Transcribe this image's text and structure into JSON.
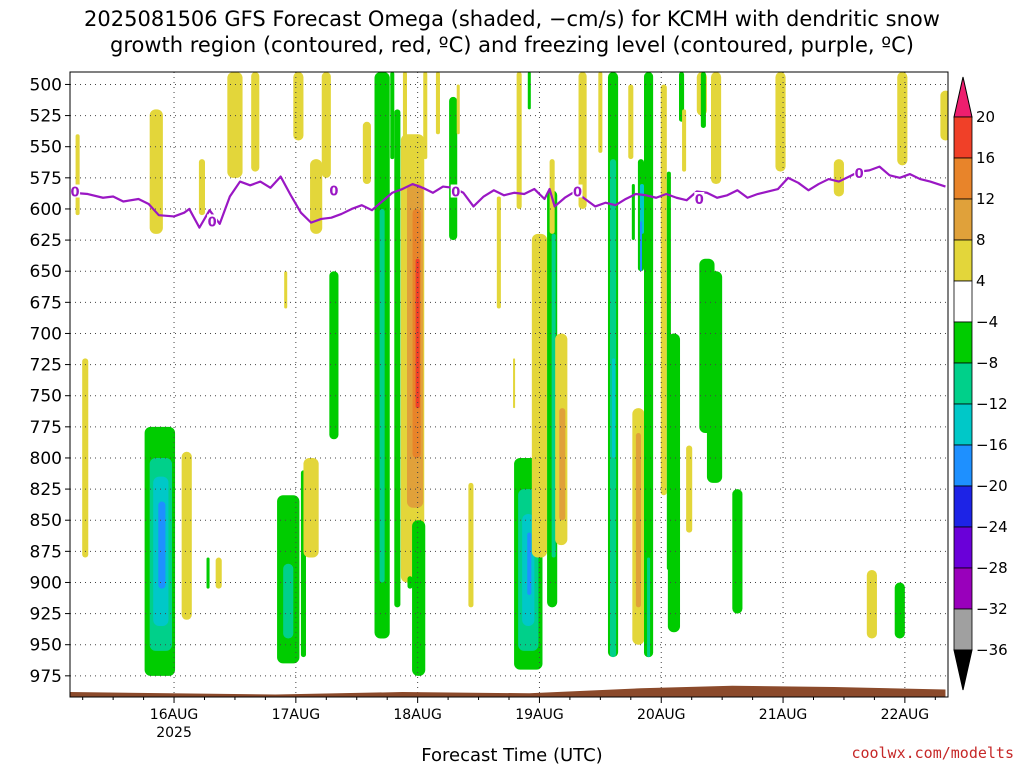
{
  "title_line1": "2025081506 GFS Forecast Omega (shaded, −cm/s) for KCMH with dendritic snow",
  "title_line2": "growth region (contoured, red, ºC) and freezing level (contoured, purple, ºC)",
  "credit": "coolwx.com/modelts",
  "chart_data": {
    "type": "heatmap",
    "title": "2025081506 GFS Forecast Omega (shaded, −cm/s) for KCMH with dendritic snow growth region (contoured, red, ºC) and freezing level (contoured, purple, ºC)",
    "xlabel": "Forecast Time (UTC)",
    "ylabel": "",
    "x_range_hours_from_16AUG00": [
      -20.5,
      152.5
    ],
    "x_ticks": [
      {
        "hour": 0,
        "label": "16AUG",
        "sublabel": "2025"
      },
      {
        "hour": 24,
        "label": "17AUG"
      },
      {
        "hour": 48,
        "label": "18AUG"
      },
      {
        "hour": 72,
        "label": "19AUG"
      },
      {
        "hour": 96,
        "label": "20AUG"
      },
      {
        "hour": 120,
        "label": "21AUG"
      },
      {
        "hour": 144,
        "label": "22AUG"
      }
    ],
    "y_ticks_hPa": [
      500,
      525,
      550,
      575,
      600,
      625,
      650,
      675,
      700,
      725,
      750,
      775,
      800,
      825,
      850,
      875,
      900,
      925,
      950,
      975
    ],
    "y_range_hPa": [
      490,
      992
    ],
    "grid": true,
    "colorbar": {
      "levels": [
        -36,
        -32,
        -28,
        -24,
        -20,
        -16,
        -12,
        -8,
        -4,
        4,
        8,
        12,
        16,
        20
      ],
      "labels": [
        "-36",
        "-32",
        "-28",
        "-24",
        "-20",
        "-16",
        "-12",
        "-8",
        "-4",
        "4",
        "8",
        "12",
        "16",
        "20"
      ],
      "colors": [
        "#000000",
        "#a0a0a0",
        "#9900bb",
        "#6a00d9",
        "#1d23e6",
        "#1e90ff",
        "#00c8c8",
        "#00d08a",
        "#00cc00",
        "#ffffff",
        "#e3d63a",
        "#e0a13a",
        "#e8842a",
        "#f04028",
        "#ee1e6e"
      ]
    },
    "freezing_level": {
      "label": "0",
      "color": "#9a17c4",
      "points": [
        [
          -20,
          587
        ],
        [
          -17,
          588
        ],
        [
          -14,
          591
        ],
        [
          -12,
          590
        ],
        [
          -10,
          594
        ],
        [
          -7,
          592
        ],
        [
          -5,
          596
        ],
        [
          -3,
          605
        ],
        [
          0,
          606
        ],
        [
          2,
          603
        ],
        [
          3,
          600
        ],
        [
          5,
          615
        ],
        [
          7,
          601
        ],
        [
          9,
          612
        ],
        [
          11,
          590
        ],
        [
          13,
          578
        ],
        [
          15,
          581
        ],
        [
          17,
          578
        ],
        [
          19,
          583
        ],
        [
          21,
          574
        ],
        [
          23,
          589
        ],
        [
          25,
          603
        ],
        [
          27,
          611
        ],
        [
          29,
          608
        ],
        [
          31,
          607
        ],
        [
          33,
          604
        ],
        [
          35,
          600
        ],
        [
          37,
          597
        ],
        [
          39,
          601
        ],
        [
          41,
          594
        ],
        [
          43,
          587
        ],
        [
          45,
          584
        ],
        [
          47,
          580
        ],
        [
          49,
          583
        ],
        [
          51,
          587
        ],
        [
          53,
          582
        ],
        [
          55,
          583
        ],
        [
          57,
          587
        ],
        [
          59,
          598
        ],
        [
          61,
          590
        ],
        [
          63,
          585
        ],
        [
          65,
          589
        ],
        [
          67,
          587
        ],
        [
          69,
          588
        ],
        [
          71,
          584
        ],
        [
          73,
          592
        ],
        [
          74,
          584
        ],
        [
          75,
          598
        ],
        [
          77,
          591
        ],
        [
          79,
          586
        ],
        [
          81,
          592
        ],
        [
          83,
          598
        ],
        [
          85,
          595
        ],
        [
          87,
          597
        ],
        [
          89,
          592
        ],
        [
          91,
          588
        ],
        [
          93,
          589
        ],
        [
          95,
          591
        ],
        [
          97,
          588
        ],
        [
          99,
          591
        ],
        [
          101,
          593
        ],
        [
          103,
          586
        ],
        [
          105,
          587
        ],
        [
          107,
          591
        ],
        [
          109,
          589
        ],
        [
          111,
          585
        ],
        [
          113,
          591
        ],
        [
          115,
          588
        ],
        [
          117,
          586
        ],
        [
          119,
          584
        ],
        [
          121,
          575
        ],
        [
          123,
          579
        ],
        [
          125,
          585
        ],
        [
          127,
          580
        ],
        [
          129,
          576
        ],
        [
          131,
          578
        ],
        [
          133,
          574
        ],
        [
          135,
          570
        ],
        [
          137,
          569
        ],
        [
          139,
          566
        ],
        [
          141,
          573
        ],
        [
          143,
          575
        ],
        [
          145,
          572
        ],
        [
          147,
          576
        ],
        [
          149,
          578
        ],
        [
          152,
          582
        ]
      ],
      "markers": [
        [
          -19.5,
          586
        ],
        [
          7.5,
          610
        ],
        [
          31.5,
          585
        ],
        [
          55.5,
          586
        ],
        [
          79.5,
          586
        ],
        [
          103.5,
          592
        ],
        [
          135,
          571
        ]
      ]
    },
    "ground": {
      "color": "#8b4a2b",
      "points": [
        [
          -20.5,
          988
        ],
        [
          20,
          990
        ],
        [
          45,
          988
        ],
        [
          70,
          989
        ],
        [
          92,
          985
        ],
        [
          110,
          983
        ],
        [
          130,
          984
        ],
        [
          152,
          986
        ]
      ]
    },
    "omega_cells": [
      {
        "h": -17.5,
        "hw": 0.6,
        "p1": 720,
        "p2": 880,
        "v": 4
      },
      {
        "h": -19,
        "hw": 0.4,
        "p1": 540,
        "p2": 605,
        "v": 4
      },
      {
        "h": -3.5,
        "hw": 1.3,
        "p1": 520,
        "p2": 620,
        "v": 4
      },
      {
        "h": 5.5,
        "hw": 0.6,
        "p1": 560,
        "p2": 605,
        "v": 4
      },
      {
        "h": -2.8,
        "hw": 3.0,
        "p1": 775,
        "p2": 975,
        "v": -8
      },
      {
        "h": -2.6,
        "hw": 2.2,
        "p1": 800,
        "p2": 955,
        "v": -12
      },
      {
        "h": -2.6,
        "hw": 1.5,
        "p1": 815,
        "p2": 935,
        "v": -16
      },
      {
        "h": -2.4,
        "hw": 0.7,
        "p1": 835,
        "p2": 905,
        "v": -20
      },
      {
        "h": 2.5,
        "hw": 1.0,
        "p1": 795,
        "p2": 930,
        "v": 4
      },
      {
        "h": 6.7,
        "hw": 0.3,
        "p1": 880,
        "p2": 905,
        "v": -8
      },
      {
        "h": 8.8,
        "hw": 0.6,
        "p1": 880,
        "p2": 905,
        "v": 4
      },
      {
        "h": 12,
        "hw": 1.5,
        "p1": 490,
        "p2": 575,
        "v": 4
      },
      {
        "h": 16,
        "hw": 0.8,
        "p1": 490,
        "p2": 570,
        "v": 4
      },
      {
        "h": 22.5,
        "hw": 2.2,
        "p1": 830,
        "p2": 965,
        "v": -8
      },
      {
        "h": 22.5,
        "hw": 1.0,
        "p1": 885,
        "p2": 945,
        "v": -12
      },
      {
        "h": 25.5,
        "hw": 0.5,
        "p1": 810,
        "p2": 960,
        "v": -8
      },
      {
        "h": 27,
        "hw": 1.5,
        "p1": 800,
        "p2": 880,
        "v": 4
      },
      {
        "h": 22,
        "hw": 0.3,
        "p1": 650,
        "p2": 680,
        "v": 4
      },
      {
        "h": 24.5,
        "hw": 1.0,
        "p1": 490,
        "p2": 545,
        "v": 4
      },
      {
        "h": 28,
        "hw": 1.2,
        "p1": 560,
        "p2": 620,
        "v": 4
      },
      {
        "h": 31.5,
        "hw": 0.9,
        "p1": 650,
        "p2": 785,
        "v": -8
      },
      {
        "h": 30,
        "hw": 0.9,
        "p1": 490,
        "p2": 575,
        "v": 4
      },
      {
        "h": 38,
        "hw": 0.8,
        "p1": 530,
        "p2": 580,
        "v": 4
      },
      {
        "h": 41,
        "hw": 1.5,
        "p1": 490,
        "p2": 945,
        "v": -8
      },
      {
        "h": 41,
        "hw": 0.5,
        "p1": 600,
        "p2": 900,
        "v": -12
      },
      {
        "h": 43,
        "hw": 0.4,
        "p1": 490,
        "p2": 560,
        "v": -8
      },
      {
        "h": 44,
        "hw": 0.6,
        "p1": 520,
        "p2": 920,
        "v": -8
      },
      {
        "h": 45.5,
        "hw": 0.4,
        "p1": 490,
        "p2": 570,
        "v": 4
      },
      {
        "h": 47,
        "hw": 2.3,
        "p1": 540,
        "p2": 900,
        "v": 4
      },
      {
        "h": 47.5,
        "hw": 1.6,
        "p1": 580,
        "p2": 840,
        "v": 8
      },
      {
        "h": 47.8,
        "hw": 0.8,
        "p1": 600,
        "p2": 800,
        "v": 12
      },
      {
        "h": 48,
        "hw": 0.4,
        "p1": 640,
        "p2": 760,
        "v": 16
      },
      {
        "h": 48.2,
        "hw": 1.3,
        "p1": 850,
        "p2": 975,
        "v": -8
      },
      {
        "h": 46.5,
        "hw": 0.5,
        "p1": 895,
        "p2": 905,
        "v": -8
      },
      {
        "h": 49.5,
        "hw": 0.4,
        "p1": 490,
        "p2": 560,
        "v": 4
      },
      {
        "h": 52,
        "hw": 0.4,
        "p1": 490,
        "p2": 540,
        "v": 4
      },
      {
        "h": 55,
        "hw": 0.8,
        "p1": 510,
        "p2": 625,
        "v": -8
      },
      {
        "h": 56,
        "hw": 0.3,
        "p1": 500,
        "p2": 540,
        "v": 4
      },
      {
        "h": 58.5,
        "hw": 0.5,
        "p1": 820,
        "p2": 920,
        "v": 4
      },
      {
        "h": 64,
        "hw": 0.4,
        "p1": 590,
        "p2": 680,
        "v": 4
      },
      {
        "h": 68,
        "hw": 0.5,
        "p1": 490,
        "p2": 600,
        "v": 4
      },
      {
        "h": 70,
        "hw": 0.3,
        "p1": 490,
        "p2": 520,
        "v": -8
      },
      {
        "h": 67,
        "hw": 0.2,
        "p1": 720,
        "p2": 760,
        "v": 4
      },
      {
        "h": 69.8,
        "hw": 2.8,
        "p1": 800,
        "p2": 970,
        "v": -8
      },
      {
        "h": 69.8,
        "hw": 2.0,
        "p1": 825,
        "p2": 955,
        "v": -12
      },
      {
        "h": 69.8,
        "hw": 1.2,
        "p1": 845,
        "p2": 935,
        "v": -16
      },
      {
        "h": 70,
        "hw": 0.4,
        "p1": 860,
        "p2": 910,
        "v": -20
      },
      {
        "h": 72,
        "hw": 1.5,
        "p1": 620,
        "p2": 880,
        "v": 4
      },
      {
        "h": 74.5,
        "hw": 1.0,
        "p1": 585,
        "p2": 920,
        "v": -8
      },
      {
        "h": 74.8,
        "hw": 0.4,
        "p1": 620,
        "p2": 880,
        "v": -12
      },
      {
        "h": 76.3,
        "hw": 1.2,
        "p1": 700,
        "p2": 870,
        "v": 4
      },
      {
        "h": 76.5,
        "hw": 0.6,
        "p1": 760,
        "p2": 850,
        "v": 8
      },
      {
        "h": 74.5,
        "hw": 0.5,
        "p1": 560,
        "p2": 620,
        "v": 4
      },
      {
        "h": 80.5,
        "hw": 0.8,
        "p1": 490,
        "p2": 600,
        "v": 4
      },
      {
        "h": 84,
        "hw": 0.4,
        "p1": 490,
        "p2": 555,
        "v": 4
      },
      {
        "h": 86.5,
        "hw": 1.0,
        "p1": 490,
        "p2": 960,
        "v": -8
      },
      {
        "h": 86.5,
        "hw": 0.6,
        "p1": 560,
        "p2": 960,
        "v": -12
      },
      {
        "h": 86.6,
        "hw": 0.3,
        "p1": 720,
        "p2": 800,
        "v": -16
      },
      {
        "h": 90,
        "hw": 0.5,
        "p1": 500,
        "p2": 560,
        "v": 4
      },
      {
        "h": 90.5,
        "hw": 0.3,
        "p1": 580,
        "p2": 625,
        "v": -8
      },
      {
        "h": 92,
        "hw": 0.6,
        "p1": 560,
        "p2": 650,
        "v": -8
      },
      {
        "h": 92.2,
        "hw": 0.4,
        "p1": 580,
        "p2": 620,
        "v": -16
      },
      {
        "h": 92,
        "hw": 0.2,
        "p1": 610,
        "p2": 650,
        "v": -20
      },
      {
        "h": 91.5,
        "hw": 1.2,
        "p1": 760,
        "p2": 950,
        "v": 4
      },
      {
        "h": 91.5,
        "hw": 0.5,
        "p1": 780,
        "p2": 920,
        "v": 8
      },
      {
        "h": 93.5,
        "hw": 0.9,
        "p1": 490,
        "p2": 960,
        "v": -8
      },
      {
        "h": 93.5,
        "hw": 0.3,
        "p1": 880,
        "p2": 960,
        "v": -12
      },
      {
        "h": 96.5,
        "hw": 0.6,
        "p1": 500,
        "p2": 830,
        "v": 4
      },
      {
        "h": 97.5,
        "hw": 0.4,
        "p1": 570,
        "p2": 890,
        "v": -8
      },
      {
        "h": 98.5,
        "hw": 1.2,
        "p1": 700,
        "p2": 940,
        "v": -8
      },
      {
        "h": 100,
        "hw": 0.5,
        "p1": 490,
        "p2": 530,
        "v": -8
      },
      {
        "h": 100.5,
        "hw": 0.4,
        "p1": 520,
        "p2": 570,
        "v": 4
      },
      {
        "h": 101.5,
        "hw": 0.6,
        "p1": 790,
        "p2": 860,
        "v": 4
      },
      {
        "h": 104,
        "hw": 1.0,
        "p1": 490,
        "p2": 525,
        "v": 4
      },
      {
        "h": 104.3,
        "hw": 0.5,
        "p1": 490,
        "p2": 535,
        "v": -8
      },
      {
        "h": 105,
        "hw": 1.5,
        "p1": 640,
        "p2": 780,
        "v": -8
      },
      {
        "h": 106.5,
        "hw": 1.5,
        "p1": 650,
        "p2": 820,
        "v": -8
      },
      {
        "h": 106.8,
        "hw": 1.0,
        "p1": 490,
        "p2": 580,
        "v": 4
      },
      {
        "h": 111,
        "hw": 1.0,
        "p1": 825,
        "p2": 925,
        "v": -8
      },
      {
        "h": 119.5,
        "hw": 1.0,
        "p1": 490,
        "p2": 570,
        "v": 4
      },
      {
        "h": 131,
        "hw": 1.0,
        "p1": 560,
        "p2": 590,
        "v": 4
      },
      {
        "h": 137.5,
        "hw": 1.0,
        "p1": 890,
        "p2": 945,
        "v": 4
      },
      {
        "h": 143,
        "hw": 1.0,
        "p1": 900,
        "p2": 945,
        "v": -8
      },
      {
        "h": 143.5,
        "hw": 1.0,
        "p1": 490,
        "p2": 565,
        "v": 4
      },
      {
        "h": 152,
        "hw": 1.0,
        "p1": 505,
        "p2": 545,
        "v": 4
      }
    ]
  }
}
